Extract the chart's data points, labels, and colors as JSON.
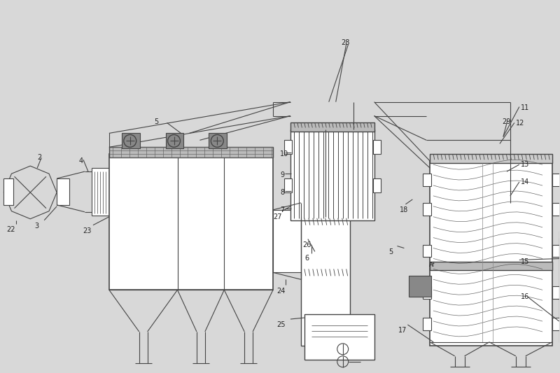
{
  "bg_color": "#d8d8d8",
  "line_color": "#444444",
  "line_width": 0.8,
  "label_color": "#222222",
  "label_fontsize": 7,
  "fig_width": 8.0,
  "fig_height": 5.33
}
